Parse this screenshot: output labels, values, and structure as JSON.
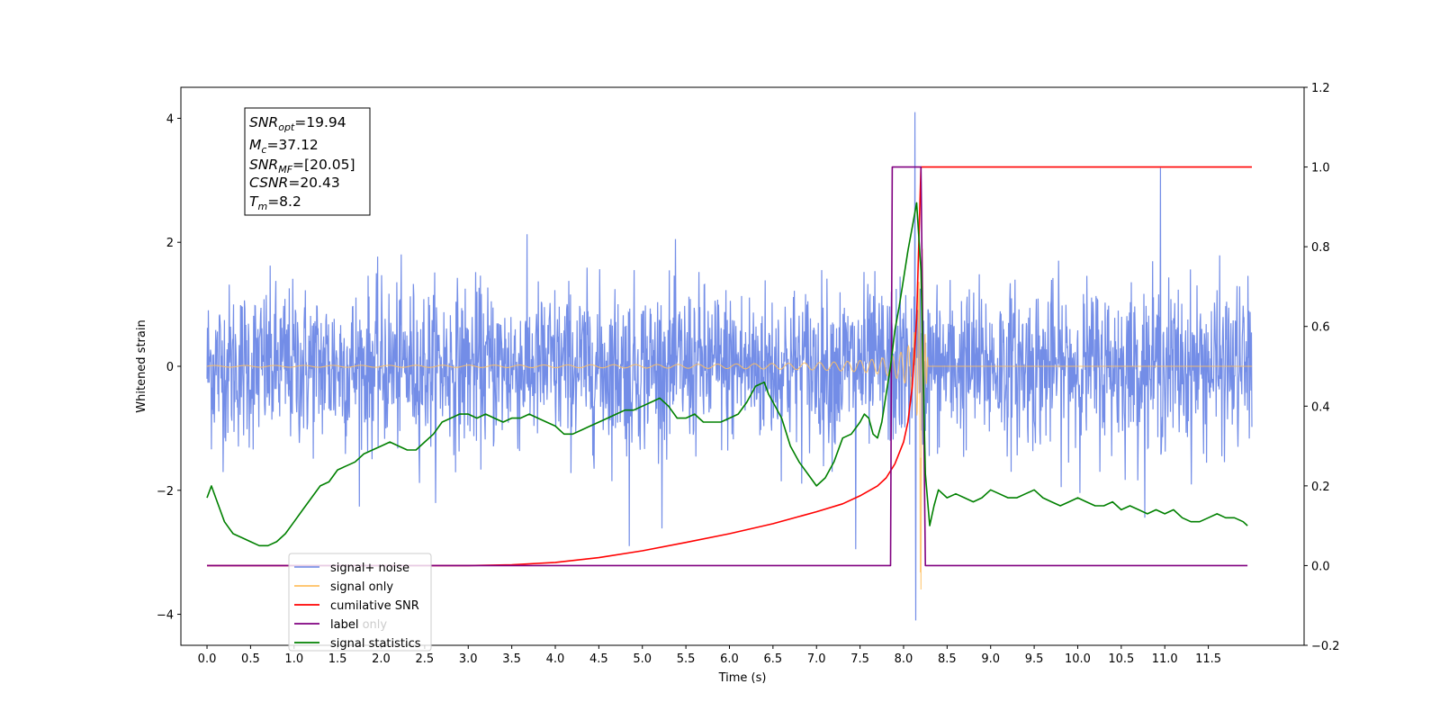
{
  "chart_data": {
    "type": "line",
    "xlabel": "Time (s)",
    "ylabel": "Whitened strain",
    "xlim": [
      -0.3,
      12.6
    ],
    "ylim": [
      -4.5,
      4.5
    ],
    "y2lim": [
      -0.2,
      1.2
    ],
    "x_ticks": [
      "0.0",
      "0.5",
      "1.0",
      "1.5",
      "2.0",
      "2.5",
      "3.0",
      "3.5",
      "4.0",
      "4.5",
      "5.0",
      "5.5",
      "6.0",
      "6.5",
      "7.0",
      "7.5",
      "8.0",
      "8.5",
      "9.0",
      "9.5",
      "10.0",
      "10.5",
      "11.0",
      "11.5"
    ],
    "y_ticks": [
      "−4",
      "−2",
      "0",
      "2",
      "4"
    ],
    "y2_ticks": [
      "−0.2",
      "0.0",
      "0.2",
      "0.4",
      "0.6",
      "0.8",
      "1.0",
      "1.2"
    ],
    "legend_position": "lower-left",
    "annotation": {
      "lines": [
        {
          "base": "SNR",
          "sub": "opt",
          "rest": "=19.94"
        },
        {
          "base": "M",
          "sub": "c",
          "rest": "=37.12"
        },
        {
          "base": "SNR",
          "sub": "MF",
          "rest": "=[20.05]"
        },
        {
          "base": "CSNR",
          "sub": "",
          "rest": "=20.43"
        },
        {
          "base": "T",
          "sub": "m",
          "rest": "=8.2"
        }
      ]
    },
    "series": [
      {
        "name": "signal+ noise",
        "axis": "left",
        "color": "#6b87e6",
        "description": "whitened noise samples, std ~0.65, spanning 0 to 12 s",
        "x_range": [
          0.0,
          12.0
        ],
        "noise_std": 0.65,
        "peaks": [
          [
            8.13,
            4.1
          ],
          [
            8.14,
            -4.1
          ],
          [
            10.95,
            3.2
          ],
          [
            4.85,
            -2.9
          ],
          [
            7.45,
            -2.95
          ]
        ]
      },
      {
        "name": "signal only",
        "axis": "left",
        "color": "#ffc060",
        "description": "chirp waveform, amplitude grows toward merger at ~8.2 s",
        "x_range": [
          0.0,
          12.0
        ],
        "merger_time": 8.2,
        "peak_amplitude": 3.6
      },
      {
        "name": "cumilative SNR",
        "axis": "right",
        "color": "#ff0000",
        "x": [
          0.0,
          3.0,
          3.5,
          4.0,
          4.5,
          5.0,
          5.5,
          6.0,
          6.5,
          7.0,
          7.3,
          7.5,
          7.7,
          7.8,
          7.9,
          8.0,
          8.05,
          8.1,
          8.15,
          8.18,
          8.2,
          12.0
        ],
        "values": [
          0.0,
          0.0,
          0.002,
          0.008,
          0.02,
          0.037,
          0.058,
          0.08,
          0.105,
          0.135,
          0.155,
          0.175,
          0.2,
          0.22,
          0.255,
          0.31,
          0.36,
          0.45,
          0.62,
          0.85,
          1.0,
          1.0
        ]
      },
      {
        "name": "label",
        "axis": "right",
        "color": "#800080",
        "x": [
          0.0,
          7.85,
          7.87,
          8.2,
          8.25,
          11.95
        ],
        "values": [
          0.0,
          0.0,
          1.0,
          1.0,
          0.0,
          0.0
        ]
      },
      {
        "name": "label only",
        "axis": "right",
        "color": "#cccccc",
        "legend_only": true
      },
      {
        "name": "signal statistics",
        "axis": "right",
        "color": "#008000",
        "x": [
          0.0,
          0.05,
          0.1,
          0.2,
          0.3,
          0.4,
          0.5,
          0.6,
          0.7,
          0.8,
          0.9,
          1.0,
          1.1,
          1.2,
          1.3,
          1.4,
          1.5,
          1.6,
          1.7,
          1.8,
          1.9,
          2.0,
          2.1,
          2.2,
          2.3,
          2.4,
          2.5,
          2.6,
          2.7,
          2.8,
          2.9,
          3.0,
          3.1,
          3.2,
          3.3,
          3.4,
          3.5,
          3.6,
          3.7,
          3.8,
          3.9,
          4.0,
          4.1,
          4.2,
          4.3,
          4.4,
          4.5,
          4.6,
          4.7,
          4.8,
          4.9,
          5.0,
          5.1,
          5.2,
          5.3,
          5.4,
          5.5,
          5.6,
          5.7,
          5.8,
          5.9,
          6.0,
          6.1,
          6.2,
          6.3,
          6.4,
          6.45,
          6.5,
          6.6,
          6.7,
          6.8,
          6.9,
          7.0,
          7.1,
          7.2,
          7.3,
          7.4,
          7.5,
          7.55,
          7.6,
          7.65,
          7.7,
          7.75,
          7.8,
          7.85,
          7.9,
          7.95,
          8.0,
          8.05,
          8.1,
          8.15,
          8.2,
          8.25,
          8.3,
          8.35,
          8.4,
          8.5,
          8.6,
          8.7,
          8.8,
          8.9,
          9.0,
          9.1,
          9.2,
          9.3,
          9.4,
          9.5,
          9.6,
          9.7,
          9.8,
          9.9,
          10.0,
          10.1,
          10.2,
          10.3,
          10.4,
          10.5,
          10.6,
          10.7,
          10.8,
          10.9,
          11.0,
          11.1,
          11.2,
          11.3,
          11.4,
          11.5,
          11.6,
          11.7,
          11.8,
          11.9,
          11.95
        ],
        "values": [
          0.17,
          0.2,
          0.17,
          0.11,
          0.08,
          0.07,
          0.06,
          0.05,
          0.05,
          0.06,
          0.08,
          0.11,
          0.14,
          0.17,
          0.2,
          0.21,
          0.24,
          0.25,
          0.26,
          0.28,
          0.29,
          0.3,
          0.31,
          0.3,
          0.29,
          0.29,
          0.31,
          0.33,
          0.36,
          0.37,
          0.38,
          0.38,
          0.37,
          0.38,
          0.37,
          0.36,
          0.37,
          0.37,
          0.38,
          0.37,
          0.36,
          0.35,
          0.33,
          0.33,
          0.34,
          0.35,
          0.36,
          0.37,
          0.38,
          0.39,
          0.39,
          0.4,
          0.41,
          0.42,
          0.4,
          0.37,
          0.37,
          0.38,
          0.36,
          0.36,
          0.36,
          0.37,
          0.38,
          0.41,
          0.45,
          0.46,
          0.43,
          0.41,
          0.37,
          0.3,
          0.26,
          0.23,
          0.2,
          0.22,
          0.26,
          0.32,
          0.33,
          0.36,
          0.38,
          0.37,
          0.33,
          0.32,
          0.36,
          0.43,
          0.5,
          0.59,
          0.65,
          0.72,
          0.79,
          0.85,
          0.91,
          0.74,
          0.23,
          0.1,
          0.15,
          0.19,
          0.17,
          0.18,
          0.17,
          0.16,
          0.17,
          0.19,
          0.18,
          0.17,
          0.17,
          0.18,
          0.19,
          0.17,
          0.16,
          0.15,
          0.16,
          0.17,
          0.16,
          0.15,
          0.15,
          0.16,
          0.14,
          0.15,
          0.14,
          0.13,
          0.14,
          0.13,
          0.14,
          0.12,
          0.11,
          0.11,
          0.12,
          0.13,
          0.12,
          0.12,
          0.11,
          0.1
        ]
      }
    ]
  }
}
